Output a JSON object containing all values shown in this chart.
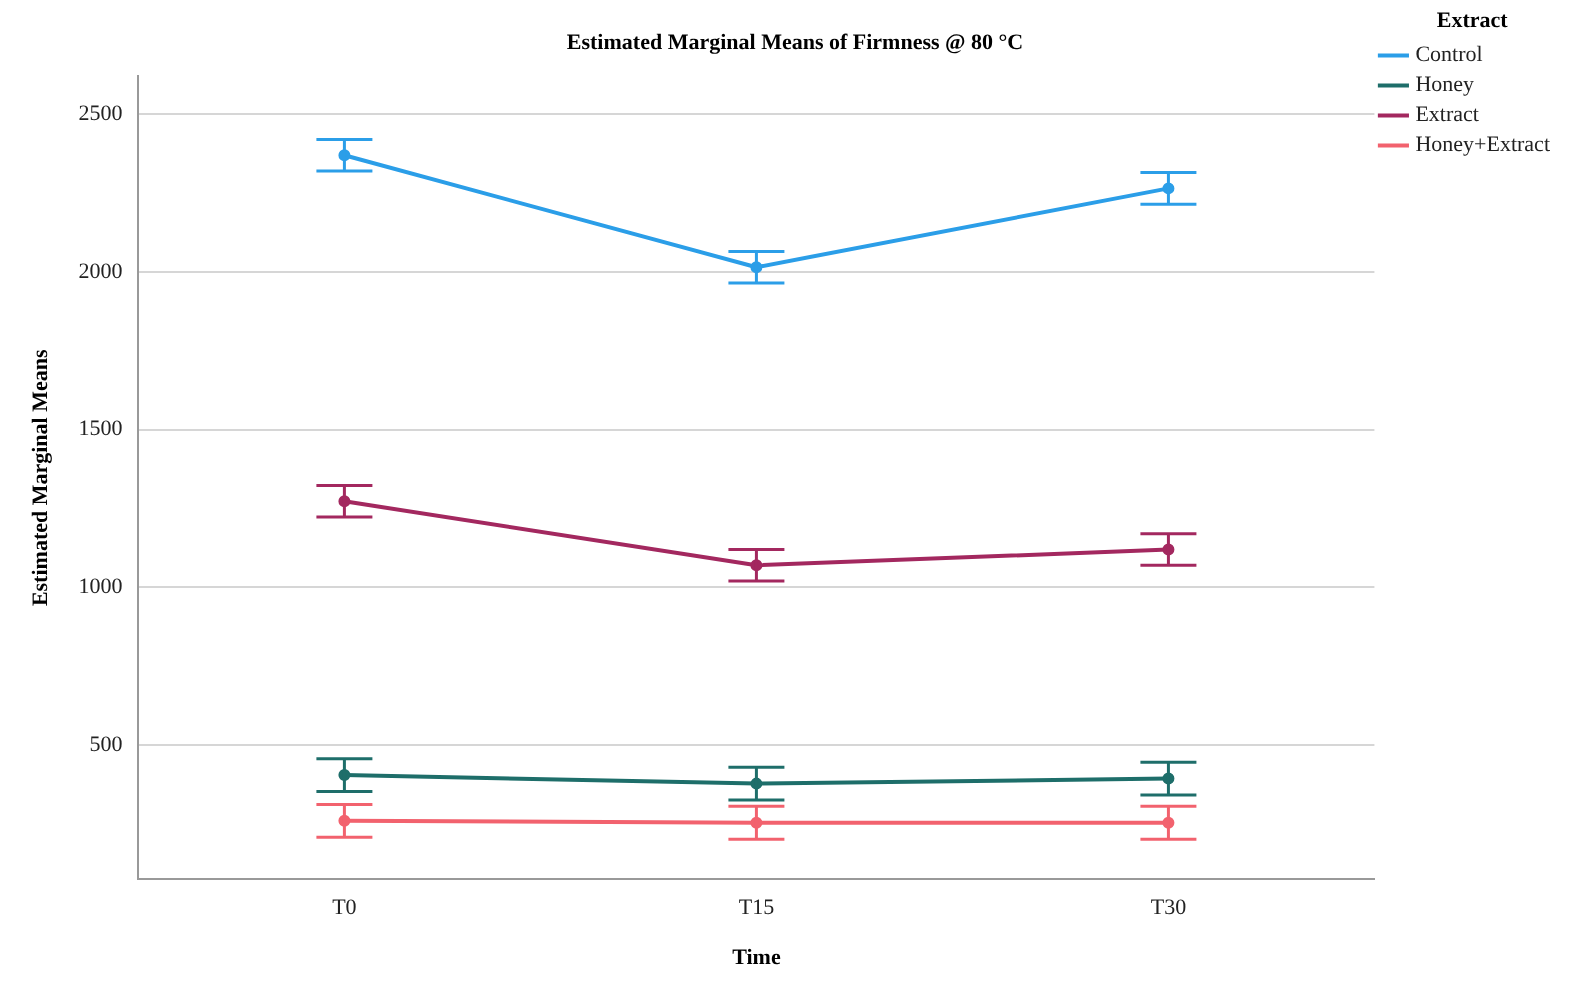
{
  "chart_data": {
    "type": "line",
    "title": "Estimated Marginal Means of Firmness @ 80 °C",
    "xlabel": "Time",
    "ylabel": "Estimated Marginal Means",
    "legend_title": "Extract",
    "categories": [
      "T0",
      "T15",
      "T30"
    ],
    "series": [
      {
        "name": "Control",
        "color": "#2b9ee8",
        "values": [
          2370,
          2015,
          2265
        ],
        "errors": [
          50,
          50,
          50
        ]
      },
      {
        "name": "Honey",
        "color": "#1e6e6a",
        "values": [
          405,
          378,
          394
        ],
        "errors": [
          52,
          52,
          52
        ]
      },
      {
        "name": "Extract",
        "color": "#a3285f",
        "values": [
          1273,
          1070,
          1120
        ],
        "errors": [
          50,
          50,
          50
        ]
      },
      {
        "name": "Honey+Extract",
        "color": "#f2626e",
        "values": [
          260,
          254,
          254
        ],
        "errors": [
          52,
          52,
          52
        ]
      }
    ],
    "ylim": [
      75,
      2620
    ],
    "yticks": [
      500,
      1000,
      1500,
      2000,
      2500
    ],
    "grid": "y",
    "legend": "top right",
    "marker": "circle",
    "line_style": "solid"
  }
}
